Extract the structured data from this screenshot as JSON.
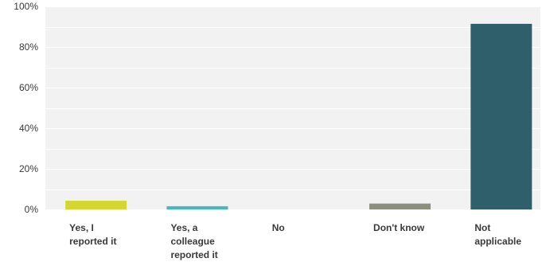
{
  "chart_data": {
    "type": "bar",
    "categories": [
      [
        "Yes, I",
        "reported it"
      ],
      [
        "Yes, a",
        "colleague",
        "reported it"
      ],
      [
        "No"
      ],
      [
        "Don't know"
      ],
      [
        "Not",
        "applicable"
      ]
    ],
    "values": [
      4.3,
      1.6,
      0,
      2.9,
      91.4
    ],
    "bar_colors": [
      "#d4d72f",
      "#45b9c3",
      "#9a9a9a",
      "#8c8f7e",
      "#2e5f6b"
    ],
    "yticks": [
      "0%",
      "20%",
      "40%",
      "60%",
      "80%",
      "100%"
    ],
    "ylim": [
      0,
      100
    ],
    "grid": true,
    "title": "",
    "xlabel": "",
    "ylabel": ""
  }
}
